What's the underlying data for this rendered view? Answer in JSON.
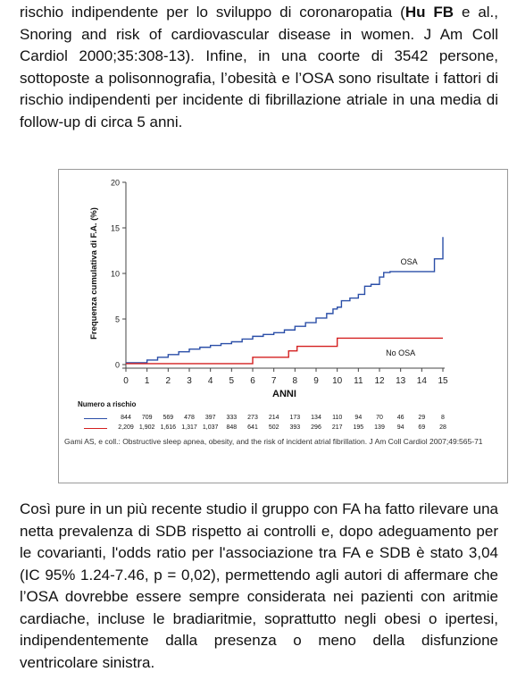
{
  "paragraph_top": {
    "before_bold": "rischio indipendente per lo sviluppo di coronaropatia (",
    "bold": "Hu FB",
    "after_bold": " e al., Snoring and risk of cardiovascular disease in women. J Am Coll Cardiol 2000;35:308-13). Infine, in una coorte di 3542 persone, sottoposte a polisonnografia, l’obesità e l’OSA sono risultate i fattori di rischio indipendenti per incidente di fibrillazione atriale in una media di follow-up di circa 5 anni."
  },
  "figure": {
    "caption": "Gami AS, e coll.: Obstructive sleep apnea, obesity, and the risk of incident atrial fibrillation. J Am Coll Cardiol 2007;49:565-71",
    "at_risk_title": "Numero a rischio",
    "at_risk_osa": [
      "844",
      "709",
      "569",
      "478",
      "397",
      "333",
      "273",
      "214",
      "173",
      "134",
      "110",
      "94",
      "70",
      "46",
      "29",
      "8"
    ],
    "at_risk_no_osa": [
      "2,209",
      "1,902",
      "1,616",
      "1,317",
      "1,037",
      "848",
      "641",
      "502",
      "393",
      "296",
      "217",
      "195",
      "139",
      "94",
      "69",
      "28"
    ]
  },
  "chart_data": {
    "type": "line",
    "xlabel": "ANNI",
    "ylabel": "Frequenza cumulativa di F.A. (%)",
    "xlim": [
      0,
      15
    ],
    "ylim": [
      0,
      20
    ],
    "x_ticks": [
      "0",
      "1",
      "2",
      "3",
      "4",
      "5",
      "6",
      "7",
      "8",
      "9",
      "10",
      "11",
      "12",
      "13",
      "14",
      "15"
    ],
    "y_ticks": [
      "0",
      "5",
      "10",
      "15",
      "20"
    ],
    "series": [
      {
        "name": "OSA",
        "color": "#2b4fa8",
        "x": [
          0,
          0.5,
          1,
          1.5,
          2,
          2.5,
          3,
          3.5,
          4,
          4.5,
          5,
          5.5,
          6,
          6.5,
          7,
          7.5,
          8,
          8.5,
          9,
          9.5,
          9.8,
          10,
          10.2,
          10.6,
          11,
          11.3,
          11.6,
          12,
          12.2,
          12.5,
          14.5,
          14.6,
          14.9,
          15
        ],
        "y": [
          0.2,
          0.2,
          0.5,
          0.8,
          1.1,
          1.4,
          1.7,
          1.9,
          2.1,
          2.3,
          2.5,
          2.8,
          3.1,
          3.3,
          3.5,
          3.8,
          4.2,
          4.6,
          5.1,
          5.6,
          6.1,
          6.3,
          7.0,
          7.3,
          7.7,
          8.6,
          8.8,
          9.6,
          10.1,
          10.2,
          10.2,
          11.6,
          11.6,
          14.0
        ]
      },
      {
        "name": "No OSA",
        "color": "#d42020",
        "x": [
          0,
          5.9,
          6,
          7.6,
          7.7,
          8.0,
          8.1,
          9.9,
          10.0,
          15
        ],
        "y": [
          0.1,
          0.1,
          0.8,
          0.8,
          1.5,
          1.5,
          2.0,
          2.0,
          2.9,
          2.9
        ]
      }
    ]
  },
  "paragraph_bottom": {
    "text": "Così pure in un più recente studio il gruppo con FA ha fatto rilevare una netta prevalenza di SDB rispetto ai controlli e, dopo adeguamento per le covarianti, l'odds ratio per l'associazione tra FA e SDB è stato 3,04 (IC 95% 1.24-7.46, p = 0,02), permettendo agli autori di affermare che l’OSA dovrebbe essere sempre considerata nei pazienti con aritmie cardiache, incluse le bradiaritmie, soprattutto negli obesi o ipertesi, indipendentemente dalla presenza o meno della disfunzione ventricolare sinistra."
  }
}
